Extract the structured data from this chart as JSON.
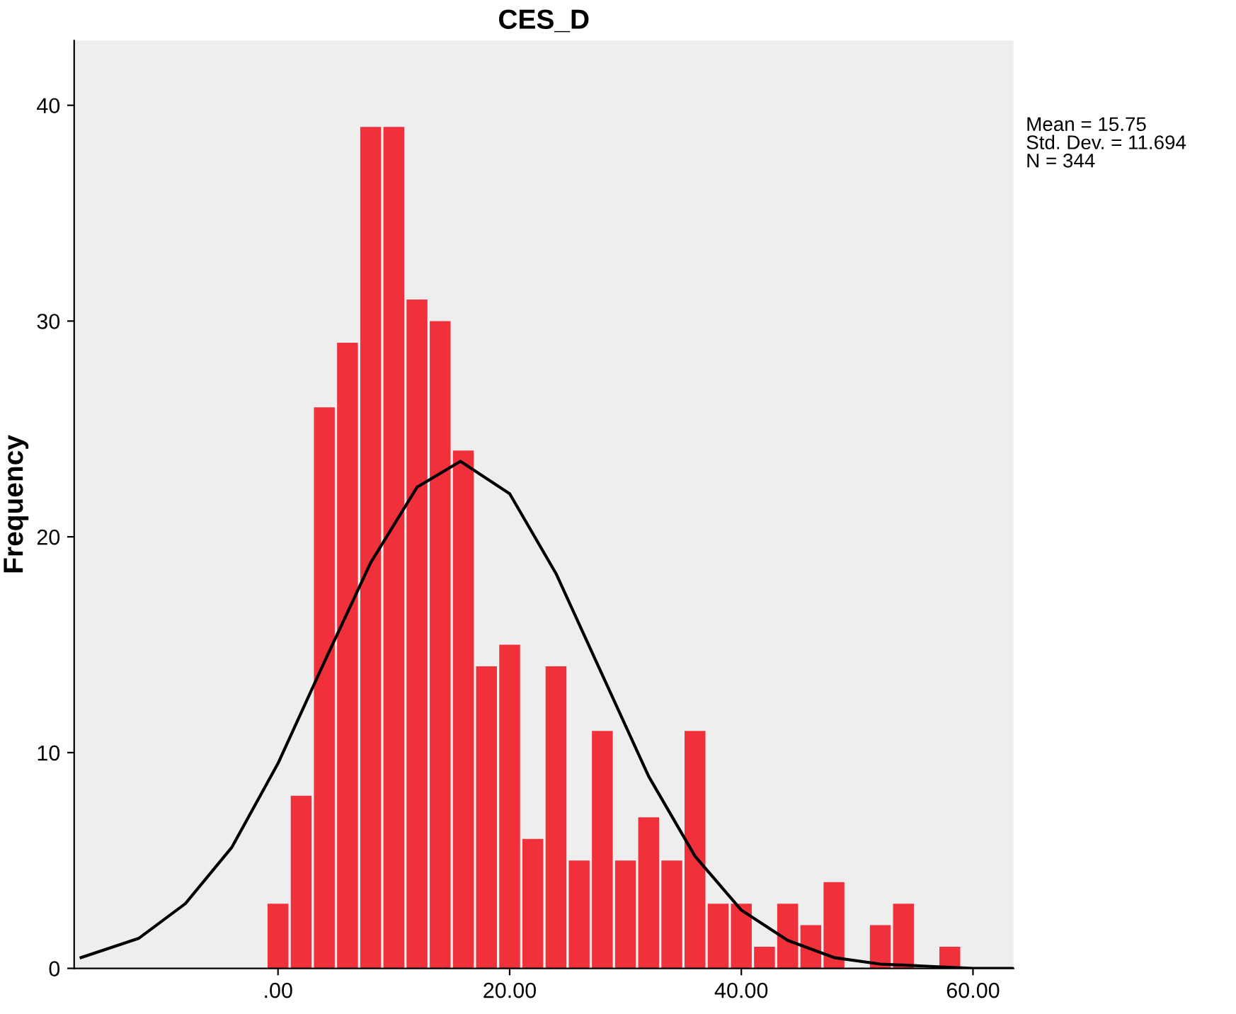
{
  "chart_data": {
    "type": "histogram",
    "title": "CES_D",
    "ylabel": "Frequency",
    "bins": [
      -1,
      1,
      3,
      5,
      7,
      9,
      11,
      13,
      15,
      17,
      19,
      21,
      23,
      25,
      27,
      29,
      31,
      33,
      35,
      37,
      39,
      41,
      43,
      45,
      47,
      49,
      51,
      53,
      55,
      57,
      59
    ],
    "values": [
      3,
      8,
      26,
      29,
      39,
      39,
      31,
      30,
      24,
      14,
      15,
      6,
      14,
      5,
      11,
      5,
      7,
      5,
      11,
      3,
      3,
      1,
      3,
      2,
      4,
      0,
      2,
      3,
      0,
      1
    ],
    "color": "#f0303a",
    "series": [
      {
        "type": "line",
        "color": "#000000",
        "x": [
          -17,
          -12,
          -8,
          -4,
          0,
          4,
          8,
          12,
          15.75,
          20,
          24,
          28,
          32,
          36,
          40,
          44,
          48,
          52,
          56,
          60,
          63.5
        ],
        "values": [
          0.5,
          1.4,
          3.0,
          5.6,
          9.5,
          14.2,
          18.8,
          22.3,
          23.5,
          22.0,
          18.3,
          13.6,
          8.9,
          5.2,
          2.7,
          1.3,
          0.5,
          0.2,
          0.1,
          0,
          0
        ]
      }
    ],
    "xlim": [
      -17.6,
      63.5
    ],
    "ylim": [
      0,
      43
    ],
    "xticks": [
      {
        "value": 0,
        "label": ".00"
      },
      {
        "value": 20,
        "label": "20.00"
      },
      {
        "value": 40,
        "label": "40.00"
      },
      {
        "value": 60,
        "label": "60.00"
      }
    ],
    "yticks": [
      0,
      10,
      20,
      30,
      40
    ],
    "annotations": [
      "Mean = 15.75",
      "Std. Dev. = 11.694",
      "N = 344"
    ]
  }
}
